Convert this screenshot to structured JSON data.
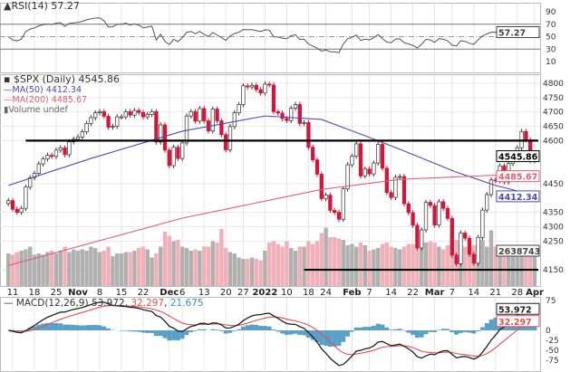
{
  "chart_data": {
    "type": "candlestick",
    "symbol_title": "$SPX (Daily) 4545.86",
    "rsi": {
      "label": "RSI(14) 57.27",
      "value_box": "57.27",
      "yticks": [
        "90",
        "70",
        "50",
        "30",
        "10"
      ],
      "levels": [
        70,
        50,
        30
      ]
    },
    "legend": [
      {
        "name": "MA(50)",
        "value": "4412.34",
        "color": "#4b4bb0"
      },
      {
        "name": "MA(200)",
        "value": "4485.67",
        "color": "#e06070"
      },
      {
        "name": "Volume",
        "value": "undef",
        "color": "#888888"
      }
    ],
    "price_yticks": [
      "4800",
      "4750",
      "4700",
      "4650",
      "4600",
      "4450",
      "4350",
      "4300",
      "4250",
      "4150"
    ],
    "price_ylim": [
      4150,
      4800
    ],
    "value_boxes": {
      "price": "4545.86",
      "ma200": "4485.67",
      "ma50": "4412.34",
      "volume": "2638743"
    },
    "xticks": [
      {
        "label": "11",
        "date": "10-11"
      },
      {
        "label": "18",
        "date": "10-18"
      },
      {
        "label": "25",
        "date": "10-25"
      },
      {
        "label": "Nov",
        "date": "11-01",
        "bold": true
      },
      {
        "label": "8",
        "date": "11-08"
      },
      {
        "label": "15",
        "date": "11-15"
      },
      {
        "label": "22",
        "date": "11-22"
      },
      {
        "label": "Dec",
        "date": "12-01",
        "bold": true
      },
      {
        "label": "6",
        "date": "12-06"
      },
      {
        "label": "13",
        "date": "12-13"
      },
      {
        "label": "20",
        "date": "12-20"
      },
      {
        "label": "27",
        "date": "12-27"
      },
      {
        "label": "2022",
        "date": "01-03",
        "bold": true
      },
      {
        "label": "10",
        "date": "01-10"
      },
      {
        "label": "18",
        "date": "01-18"
      },
      {
        "label": "24",
        "date": "01-24"
      },
      {
        "label": "Feb",
        "date": "02-01",
        "bold": true
      },
      {
        "label": "7",
        "date": "02-07"
      },
      {
        "label": "14",
        "date": "02-14"
      },
      {
        "label": "22",
        "date": "02-22"
      },
      {
        "label": "Mar",
        "date": "03-01",
        "bold": true
      },
      {
        "label": "7",
        "date": "03-07"
      },
      {
        "label": "14",
        "date": "03-14"
      },
      {
        "label": "21",
        "date": "03-21"
      },
      {
        "label": "28",
        "date": "03-28"
      },
      {
        "label": "Apr",
        "date": "04-01",
        "bold": true
      }
    ],
    "horizontal_lines": [
      {
        "price": 4600,
        "from": "10-14",
        "to": "04-01"
      },
      {
        "price": 4150,
        "from": "01-14",
        "to": "04-01"
      }
    ],
    "candles_date_close_volB": [
      [
        "10-08",
        4391,
        2.4
      ],
      [
        "10-11",
        4361,
        2.3
      ],
      [
        "10-12",
        4350,
        2.5
      ],
      [
        "10-13",
        4364,
        2.6
      ],
      [
        "10-14",
        4438,
        2.7
      ],
      [
        "10-15",
        4471,
        2.9
      ],
      [
        "10-18",
        4486,
        2.3
      ],
      [
        "10-19",
        4519,
        2.4
      ],
      [
        "10-20",
        4536,
        2.3
      ],
      [
        "10-21",
        4549,
        2.5
      ],
      [
        "10-22",
        4545,
        2.6
      ],
      [
        "10-25",
        4567,
        2.4
      ],
      [
        "10-26",
        4575,
        2.6
      ],
      [
        "10-27",
        4551,
        2.9
      ],
      [
        "10-28",
        4596,
        2.5
      ],
      [
        "10-29",
        4605,
        2.7
      ],
      [
        "11-01",
        4613,
        2.6
      ],
      [
        "11-02",
        4631,
        2.7
      ],
      [
        "11-03",
        4660,
        2.6
      ],
      [
        "11-04",
        4680,
        2.9
      ],
      [
        "11-05",
        4697,
        2.8
      ],
      [
        "11-08",
        4701,
        2.5
      ],
      [
        "11-09",
        4685,
        2.6
      ],
      [
        "11-10",
        4647,
        2.9
      ],
      [
        "11-11",
        4650,
        2.2
      ],
      [
        "11-12",
        4683,
        2.4
      ],
      [
        "11-15",
        4683,
        2.4
      ],
      [
        "11-16",
        4701,
        2.5
      ],
      [
        "11-17",
        4689,
        2.5
      ],
      [
        "11-18",
        4705,
        2.6
      ],
      [
        "11-19",
        4698,
        2.8
      ],
      [
        "11-22",
        4683,
        2.9
      ],
      [
        "11-23",
        4691,
        2.7
      ],
      [
        "11-24",
        4701,
        2.1
      ],
      [
        "11-26",
        4595,
        2.4
      ],
      [
        "11-29",
        4655,
        2.9
      ],
      [
        "11-30",
        4567,
        4.0
      ],
      [
        "12-01",
        4513,
        3.7
      ],
      [
        "12-02",
        4577,
        3.3
      ],
      [
        "12-03",
        4538,
        3.4
      ],
      [
        "12-06",
        4592,
        2.9
      ],
      [
        "12-07",
        4686,
        2.8
      ],
      [
        "12-08",
        4701,
        2.6
      ],
      [
        "12-09",
        4668,
        2.7
      ],
      [
        "12-10",
        4712,
        2.6
      ],
      [
        "12-13",
        4669,
        2.9
      ],
      [
        "12-14",
        4634,
        2.9
      ],
      [
        "12-15",
        4710,
        3.3
      ],
      [
        "12-16",
        4669,
        3.2
      ],
      [
        "12-17",
        4621,
        4.2
      ],
      [
        "12-20",
        4568,
        2.8
      ],
      [
        "12-21",
        4649,
        2.5
      ],
      [
        "12-22",
        4697,
        2.4
      ],
      [
        "12-23",
        4726,
        2.1
      ],
      [
        "12-27",
        4791,
        2.0
      ],
      [
        "12-28",
        4787,
        2.0
      ],
      [
        "12-29",
        4793,
        2.1
      ],
      [
        "12-30",
        4778,
        2.0
      ],
      [
        "12-31",
        4766,
        1.9
      ],
      [
        "01-03",
        4797,
        2.6
      ],
      [
        "01-04",
        4794,
        3.2
      ],
      [
        "01-05",
        4701,
        3.3
      ],
      [
        "01-06",
        4696,
        3.1
      ],
      [
        "01-07",
        4677,
        2.9
      ],
      [
        "01-10",
        4670,
        3.3
      ],
      [
        "01-11",
        4713,
        2.8
      ],
      [
        "01-12",
        4726,
        2.6
      ],
      [
        "01-13",
        4660,
        2.9
      ],
      [
        "01-14",
        4663,
        2.9
      ],
      [
        "01-18",
        4577,
        3.3
      ],
      [
        "01-19",
        4533,
        3.1
      ],
      [
        "01-20",
        4483,
        3.3
      ],
      [
        "01-21",
        4398,
        3.9
      ],
      [
        "01-24",
        4410,
        4.3
      ],
      [
        "01-25",
        4357,
        3.6
      ],
      [
        "01-26",
        4350,
        3.6
      ],
      [
        "01-27",
        4326,
        3.5
      ],
      [
        "01-28",
        4432,
        3.4
      ],
      [
        "01-31",
        4516,
        3.0
      ],
      [
        "02-01",
        4546,
        3.1
      ],
      [
        "02-02",
        4589,
        2.9
      ],
      [
        "02-03",
        4477,
        3.2
      ],
      [
        "02-04",
        4501,
        3.0
      ],
      [
        "02-07",
        4484,
        2.6
      ],
      [
        "02-08",
        4522,
        2.7
      ],
      [
        "02-09",
        4587,
        2.8
      ],
      [
        "02-10",
        4504,
        3.1
      ],
      [
        "02-11",
        4419,
        3.2
      ],
      [
        "02-14",
        4402,
        2.9
      ],
      [
        "02-15",
        4472,
        2.8
      ],
      [
        "02-16",
        4475,
        2.7
      ],
      [
        "02-17",
        4380,
        2.9
      ],
      [
        "02-18",
        4349,
        3.1
      ],
      [
        "02-22",
        4305,
        3.1
      ],
      [
        "02-23",
        4226,
        3.0
      ],
      [
        "02-24",
        4289,
        4.0
      ],
      [
        "02-25",
        4385,
        3.2
      ],
      [
        "02-28",
        4374,
        3.3
      ],
      [
        "03-01",
        4306,
        3.2
      ],
      [
        "03-02",
        4387,
        2.9
      ],
      [
        "03-03",
        4364,
        2.7
      ],
      [
        "03-04",
        4329,
        3.0
      ],
      [
        "03-07",
        4201,
        3.4
      ],
      [
        "03-08",
        4171,
        3.4
      ],
      [
        "03-09",
        4278,
        3.1
      ],
      [
        "03-10",
        4260,
        2.9
      ],
      [
        "03-11",
        4204,
        2.8
      ],
      [
        "03-14",
        4173,
        3.0
      ],
      [
        "03-15",
        4263,
        3.1
      ],
      [
        "03-16",
        4358,
        3.4
      ],
      [
        "03-17",
        4412,
        2.9
      ],
      [
        "03-18",
        4463,
        4.1
      ],
      [
        "03-21",
        4461,
        2.9
      ],
      [
        "03-22",
        4512,
        2.8
      ],
      [
        "03-23",
        4456,
        2.7
      ],
      [
        "03-24",
        4520,
        2.6
      ],
      [
        "03-25",
        4543,
        2.6
      ],
      [
        "03-28",
        4575,
        2.6
      ],
      [
        "03-29",
        4632,
        2.9
      ],
      [
        "03-30",
        4603,
        2.7
      ],
      [
        "03-31",
        4530,
        2.9
      ],
      [
        "04-01",
        4546,
        2.6
      ]
    ],
    "ma50_points": [
      [
        "10-08",
        4444
      ],
      [
        "11-04",
        4538
      ],
      [
        "12-06",
        4633
      ],
      [
        "01-03",
        4686
      ],
      [
        "01-21",
        4674
      ],
      [
        "02-04",
        4617
      ],
      [
        "02-16",
        4570
      ],
      [
        "03-08",
        4490
      ],
      [
        "03-21",
        4444
      ],
      [
        "03-29",
        4421
      ],
      [
        "04-01",
        4412.34
      ]
    ],
    "ma200_points": [
      [
        "10-08",
        4165
      ],
      [
        "12-06",
        4330
      ],
      [
        "01-21",
        4430
      ],
      [
        "02-16",
        4465
      ],
      [
        "04-01",
        4485.67
      ]
    ],
    "macd": {
      "label": "MACD(12,26,9)",
      "macd": "53.972",
      "signal": "32.297",
      "histogram": "21.675",
      "yticks": [
        "75",
        "0",
        "-25",
        "-50",
        "-75"
      ],
      "colors": {
        "macd": "#222222",
        "signal": "#e05050",
        "histogram": "#3a8fc0"
      }
    },
    "colors": {
      "up_candle": "#ffffff",
      "down_candle": "#d0163a",
      "volume_up": "#b0b0b0",
      "volume_down": "#f0b0b8"
    }
  }
}
